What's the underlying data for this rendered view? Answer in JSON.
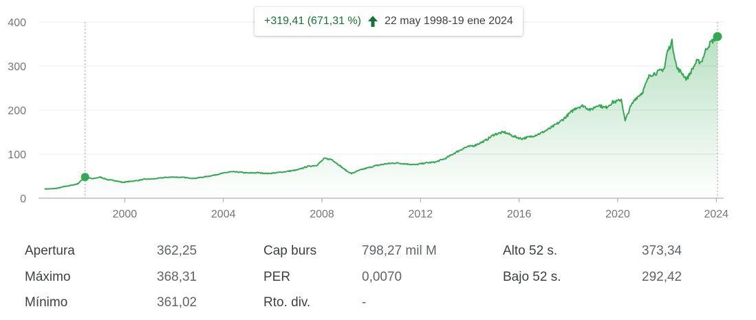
{
  "tooltip": {
    "change": "+319,41 (671,31 %)",
    "range": "22 may 1998-19 ene 2024",
    "arrow_icon": "arrow-up-icon"
  },
  "colors": {
    "line": "#34a853",
    "positive_text": "#137333",
    "grid": "#e8e8e8",
    "axis": "#9e9e9e"
  },
  "chart_data": {
    "type": "area",
    "title": "",
    "xlabel": "",
    "ylabel": "",
    "ylim": [
      0,
      400
    ],
    "yticks": [
      "0",
      "100",
      "200",
      "300",
      "400"
    ],
    "xticks": [
      "2000",
      "2004",
      "2008",
      "2012",
      "2016",
      "2020",
      "2024"
    ],
    "grid": true,
    "xrange": [
      1996.5,
      2024.3
    ],
    "selection": {
      "start": 1998.39,
      "end": 2024.05
    },
    "series": [
      {
        "x": [
          1996.75,
          1997.0,
          1997.3,
          1997.6,
          1997.9,
          1998.1,
          1998.39,
          1998.7,
          1999.0,
          1999.3,
          1999.6,
          1999.9,
          2000.2,
          2000.5,
          2000.8,
          2001.2,
          2001.6,
          2002.0,
          2002.4,
          2002.8,
          2003.2,
          2003.6,
          2004.0,
          2004.3,
          2004.7,
          2005.0,
          2005.4,
          2005.8,
          2006.2,
          2006.6,
          2007.0,
          2007.4,
          2007.8,
          2008.1,
          2008.4,
          2008.7,
          2009.0,
          2009.2,
          2009.5,
          2009.8,
          2010.2,
          2010.6,
          2011.0,
          2011.4,
          2011.8,
          2012.2,
          2012.6,
          2013.0,
          2013.4,
          2013.8,
          2014.2,
          2014.6,
          2015.0,
          2015.4,
          2015.8,
          2016.1,
          2016.5,
          2016.9,
          2017.3,
          2017.7,
          2018.0,
          2018.3,
          2018.6,
          2018.9,
          2019.2,
          2019.5,
          2019.8,
          2020.0,
          2020.15,
          2020.3,
          2020.5,
          2020.7,
          2021.0,
          2021.3,
          2021.6,
          2021.9,
          2022.0,
          2022.2,
          2022.4,
          2022.6,
          2022.8,
          2023.0,
          2023.2,
          2023.4,
          2023.6,
          2023.8,
          2024.05
        ],
        "values": [
          21,
          21,
          23,
          27,
          30,
          33,
          48,
          44,
          48,
          42,
          40,
          36,
          38,
          40,
          43,
          44,
          47,
          48,
          47,
          45,
          48,
          52,
          57,
          60,
          59,
          57,
          58,
          56,
          58,
          61,
          64,
          72,
          75,
          90,
          88,
          75,
          62,
          56,
          63,
          68,
          74,
          78,
          80,
          78,
          76,
          80,
          82,
          90,
          103,
          115,
          120,
          130,
          145,
          150,
          140,
          135,
          140,
          148,
          160,
          175,
          190,
          205,
          210,
          200,
          212,
          205,
          218,
          220,
          225,
          175,
          205,
          225,
          240,
          280,
          285,
          295,
          330,
          355,
          295,
          285,
          270,
          290,
          310,
          310,
          340,
          355,
          367
        ]
      }
    ],
    "endpoint_value": 367
  },
  "stats": [
    [
      {
        "label": "Apertura",
        "value": "362,25"
      },
      {
        "label": "Cap burs",
        "value": "798,27 mil M"
      },
      {
        "label": "Alto 52 s.",
        "value": "373,34"
      }
    ],
    [
      {
        "label": "Máximo",
        "value": "368,31"
      },
      {
        "label": "PER",
        "value": "0,0070"
      },
      {
        "label": "Bajo 52 s.",
        "value": "292,42"
      }
    ],
    [
      {
        "label": "Mínimo",
        "value": "361,02"
      },
      {
        "label": "Rto. div.",
        "value": "-"
      },
      {
        "label": "",
        "value": ""
      }
    ]
  ]
}
